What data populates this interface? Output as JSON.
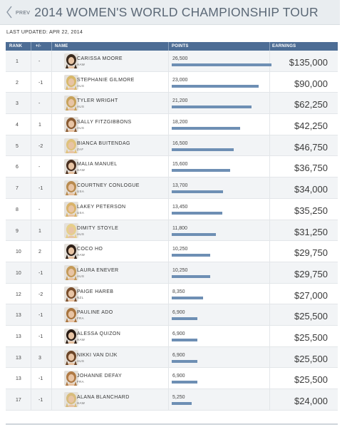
{
  "header": {
    "prev_label": "PREV",
    "title": "2014 WOMEN'S WORLD CHAMPIONSHIP TOUR"
  },
  "last_updated": "LAST UPDATED: APR 22, 2014",
  "columns": [
    "RANK",
    "+/-",
    "NAME",
    "POINTS",
    "EARNINGS"
  ],
  "max_points": 26500,
  "rows": [
    {
      "rank": "1",
      "change": "-",
      "name": "CARISSA MOORE",
      "country": "HAW",
      "points": "26,500",
      "points_value": 26500,
      "earnings": "$135,000",
      "hair": "#3a2a1e"
    },
    {
      "rank": "2",
      "change": "-1",
      "name": "STEPHANIE GILMORE",
      "country": "AUS",
      "points": "23,000",
      "points_value": 23000,
      "earnings": "$90,000",
      "hair": "#d8b86a"
    },
    {
      "rank": "3",
      "change": "-",
      "name": "TYLER WRIGHT",
      "country": "AUS",
      "points": "21,200",
      "points_value": 21200,
      "earnings": "$62,250",
      "hair": "#c7a25a"
    },
    {
      "rank": "4",
      "change": "1",
      "name": "SALLY FITZGIBBONS",
      "country": "AUS",
      "points": "18,200",
      "points_value": 18200,
      "earnings": "$42,250",
      "hair": "#8a5b32"
    },
    {
      "rank": "5",
      "change": "-2",
      "name": "BIANCA BUITENDAG",
      "country": "ZAF",
      "points": "16,500",
      "points_value": 16500,
      "earnings": "$46,750",
      "hair": "#e0c27c"
    },
    {
      "rank": "6",
      "change": "-",
      "name": "MALIA MANUEL",
      "country": "HAW",
      "points": "15,600",
      "points_value": 15600,
      "earnings": "$36,750",
      "hair": "#4a3020"
    },
    {
      "rank": "7",
      "change": "-1",
      "name": "COURTNEY CONLOGUE",
      "country": "USA",
      "points": "13,700",
      "points_value": 13700,
      "earnings": "$34,000",
      "hair": "#b88a4e"
    },
    {
      "rank": "8",
      "change": "-",
      "name": "LAKEY PETERSON",
      "country": "USA",
      "points": "13,450",
      "points_value": 13450,
      "earnings": "$35,250",
      "hair": "#d9b36a"
    },
    {
      "rank": "9",
      "change": "1",
      "name": "DIMITY STOYLE",
      "country": "AUS",
      "points": "11,800",
      "points_value": 11800,
      "earnings": "$31,250",
      "hair": "#e6cf8a"
    },
    {
      "rank": "10",
      "change": "2",
      "name": "COCO HO",
      "country": "HAW",
      "points": "10,250",
      "points_value": 10250,
      "earnings": "$29,750",
      "hair": "#2e2018"
    },
    {
      "rank": "10",
      "change": "-1",
      "name": "LAURA ENEVER",
      "country": "AUS",
      "points": "10,250",
      "points_value": 10250,
      "earnings": "$29,750",
      "hair": "#c49a58"
    },
    {
      "rank": "12",
      "change": "-2",
      "name": "PAIGE HAREB",
      "country": "NZL",
      "points": "8,350",
      "points_value": 8350,
      "earnings": "$27,000",
      "hair": "#7a4e2c"
    },
    {
      "rank": "13",
      "change": "-1",
      "name": "PAULINE ADO",
      "country": "FRA",
      "points": "6,900",
      "points_value": 6900,
      "earnings": "$25,500",
      "hair": "#a8743e"
    },
    {
      "rank": "13",
      "change": "-1",
      "name": "ALESSA QUIZON",
      "country": "HAW",
      "points": "6,900",
      "points_value": 6900,
      "earnings": "$25,500",
      "hair": "#2a1c14"
    },
    {
      "rank": "13",
      "change": "3",
      "name": "NIKKI VAN DIJK",
      "country": "AUS",
      "points": "6,900",
      "points_value": 6900,
      "earnings": "$25,500",
      "hair": "#6b4426"
    },
    {
      "rank": "13",
      "change": "-1",
      "name": "JOHANNE DEFAY",
      "country": "FRA",
      "points": "6,900",
      "points_value": 6900,
      "earnings": "$25,500",
      "hair": "#b07a44"
    },
    {
      "rank": "17",
      "change": "-1",
      "name": "ALANA BLANCHARD",
      "country": "HAW",
      "points": "5,250",
      "points_value": 5250,
      "earnings": "$24,000",
      "hair": "#d8bc7c"
    }
  ]
}
